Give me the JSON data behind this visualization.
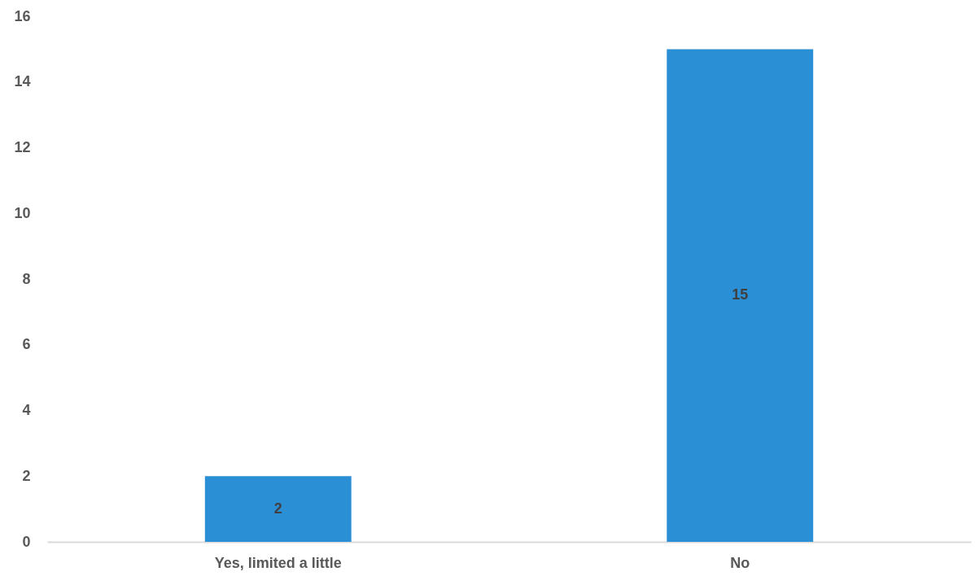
{
  "chart_data": {
    "type": "bar",
    "categories": [
      "Yes, limited a little",
      "No"
    ],
    "values": [
      2,
      15
    ],
    "color": "#2b8fd6",
    "ylim": [
      0,
      16
    ],
    "yticks": [
      0,
      2,
      4,
      6,
      8,
      10,
      12,
      14,
      16
    ],
    "data_labels": true
  }
}
